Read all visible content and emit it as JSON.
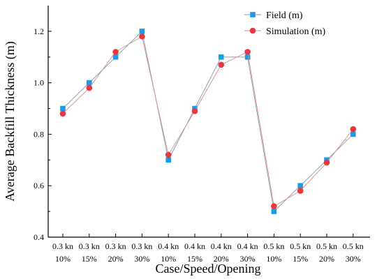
{
  "chart_data": {
    "type": "line",
    "title": "",
    "xlabel": "Case/Speed/Opening",
    "ylabel": "Average Backfill Thickness (m)",
    "ylim": [
      0.4,
      1.3
    ],
    "yticks": [
      "0.4",
      "0.6",
      "0.8",
      "1.0",
      "1.2"
    ],
    "grid": false,
    "legend_position": "top-right",
    "categories": [
      {
        "speed": "0.3 kn",
        "opening": "10%"
      },
      {
        "speed": "0.3 kn",
        "opening": "15%"
      },
      {
        "speed": "0.3 kn",
        "opening": "20%"
      },
      {
        "speed": "0.3 kn",
        "opening": "30%"
      },
      {
        "speed": "0.4 kn",
        "opening": "10%"
      },
      {
        "speed": "0.4 kn",
        "opening": "15%"
      },
      {
        "speed": "0.4 kn",
        "opening": "20%"
      },
      {
        "speed": "0.4 kn",
        "opening": "30%"
      },
      {
        "speed": "0.5 kn",
        "opening": "10%"
      },
      {
        "speed": "0.5 kn",
        "opening": "15%"
      },
      {
        "speed": "0.5 kn",
        "opening": "20%"
      },
      {
        "speed": "0.5 kn",
        "opening": "30%"
      }
    ],
    "series": [
      {
        "name": "Field (m)",
        "marker": "square",
        "color": "#1E9BE6",
        "values": [
          0.9,
          1.0,
          1.1,
          1.2,
          0.7,
          0.9,
          1.1,
          1.1,
          0.5,
          0.6,
          0.7,
          0.8
        ]
      },
      {
        "name": "Simulation (m)",
        "marker": "circle",
        "color": "#E8383D",
        "values": [
          0.88,
          0.98,
          1.12,
          1.18,
          0.72,
          0.89,
          1.07,
          1.12,
          0.52,
          0.58,
          0.69,
          0.82
        ]
      }
    ]
  }
}
